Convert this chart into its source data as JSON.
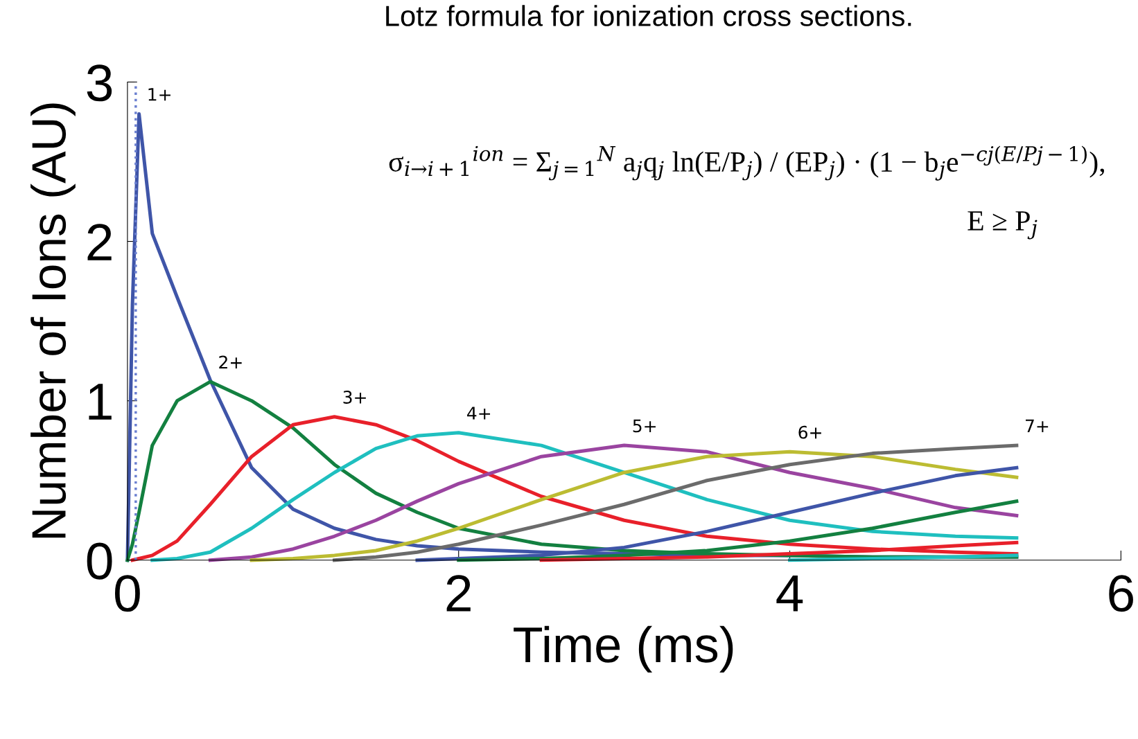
{
  "chart_data": {
    "type": "line",
    "title": "Lotz formula for ionization cross sections.",
    "xlabel": "Time (ms)",
    "ylabel": "Number of Ions (AU)",
    "x": [
      0,
      0.03,
      0.07,
      0.15,
      0.3,
      0.5,
      0.75,
      1,
      1.25,
      1.5,
      1.75,
      2,
      2.5,
      3,
      3.5,
      4,
      4.5,
      5,
      5.37
    ],
    "series": [
      {
        "name": "1+",
        "color": "#3f55a8",
        "values": [
          0,
          1.6,
          2.8,
          2.05,
          1.65,
          1.13,
          0.58,
          0.32,
          0.2,
          0.13,
          0.09,
          0.07,
          0.05,
          0.04,
          0.03,
          0.03,
          0.02,
          0.02,
          0.02
        ]
      },
      {
        "name": "2+",
        "color": "#138040",
        "values": [
          0,
          0.1,
          0.3,
          0.72,
          1.0,
          1.12,
          1.0,
          0.83,
          0.6,
          0.42,
          0.3,
          0.2,
          0.1,
          0.06,
          0.04,
          0.03,
          0.02,
          0.02,
          0.02
        ]
      },
      {
        "name": "3+",
        "color": "#e8202a",
        "values": [
          null,
          0,
          0.01,
          0.03,
          0.12,
          0.35,
          0.65,
          0.85,
          0.9,
          0.85,
          0.75,
          0.62,
          0.4,
          0.25,
          0.15,
          0.1,
          0.07,
          0.05,
          0.04
        ]
      },
      {
        "name": "4+",
        "color": "#1fbfbf",
        "values": [
          null,
          null,
          null,
          0,
          0.01,
          0.05,
          0.2,
          0.38,
          0.55,
          0.7,
          0.78,
          0.8,
          0.72,
          0.55,
          0.38,
          0.25,
          0.18,
          0.15,
          0.14
        ]
      },
      {
        "name": "5+",
        "color": "#9a44a0",
        "values": [
          null,
          null,
          null,
          null,
          null,
          0,
          0.02,
          0.07,
          0.15,
          0.25,
          0.37,
          0.48,
          0.65,
          0.72,
          0.68,
          0.55,
          0.45,
          0.33,
          0.28
        ]
      },
      {
        "name": "6+",
        "color": "#bcbc32",
        "values": [
          null,
          null,
          null,
          null,
          null,
          null,
          0,
          0.01,
          0.03,
          0.06,
          0.12,
          0.2,
          0.38,
          0.55,
          0.65,
          0.68,
          0.65,
          0.57,
          0.52
        ]
      },
      {
        "name": "7+",
        "color": "#6b6b6b",
        "values": [
          null,
          null,
          null,
          null,
          null,
          null,
          null,
          null,
          0,
          0.02,
          0.05,
          0.1,
          0.22,
          0.35,
          0.5,
          0.6,
          0.67,
          0.7,
          0.72
        ]
      },
      {
        "color": "#3f55a8",
        "values": [
          null,
          null,
          null,
          null,
          null,
          null,
          null,
          null,
          null,
          null,
          0,
          0.01,
          0.03,
          0.08,
          0.18,
          0.3,
          0.42,
          0.53,
          0.58
        ]
      },
      {
        "color": "#138040",
        "values": [
          null,
          null,
          null,
          null,
          null,
          null,
          null,
          null,
          null,
          null,
          null,
          0,
          0.01,
          0.03,
          0.06,
          0.12,
          0.2,
          0.3,
          0.37
        ]
      },
      {
        "color": "#e8202a",
        "values": [
          null,
          null,
          null,
          null,
          null,
          null,
          null,
          null,
          null,
          null,
          null,
          null,
          0,
          0.01,
          0.02,
          0.04,
          0.06,
          0.09,
          0.11
        ]
      },
      {
        "color": "#1fbfbf",
        "values": [
          null,
          null,
          null,
          null,
          null,
          null,
          null,
          null,
          null,
          null,
          null,
          null,
          null,
          null,
          null,
          0,
          0.01,
          0.02,
          0.03
        ]
      }
    ],
    "ref_lines": [
      {
        "axis": "x",
        "value": 0.05,
        "color": "#6a7fd0",
        "line_style": "dotted"
      }
    ],
    "annotations": [
      "σ$_{i→i+1}$$^{ion}$ = Σ$_{j=1}$$^{N}$ a$_{j}$q$_{j}$ ln(E/P$_{j}$) / (EP$_{j}$) ·",
      "(1 − b$_{j}$e$^{−cj(E/Pj−1)}$),",
      "E ≥ P$_{j}$"
    ],
    "xlim": [
      0,
      6
    ],
    "ylim": [
      0,
      3
    ],
    "xticks": [
      0,
      2,
      4,
      6
    ],
    "yticks": [
      0,
      1,
      2,
      3
    ],
    "grid": false,
    "legend": false,
    "marker": "none",
    "line_style": "solid"
  }
}
